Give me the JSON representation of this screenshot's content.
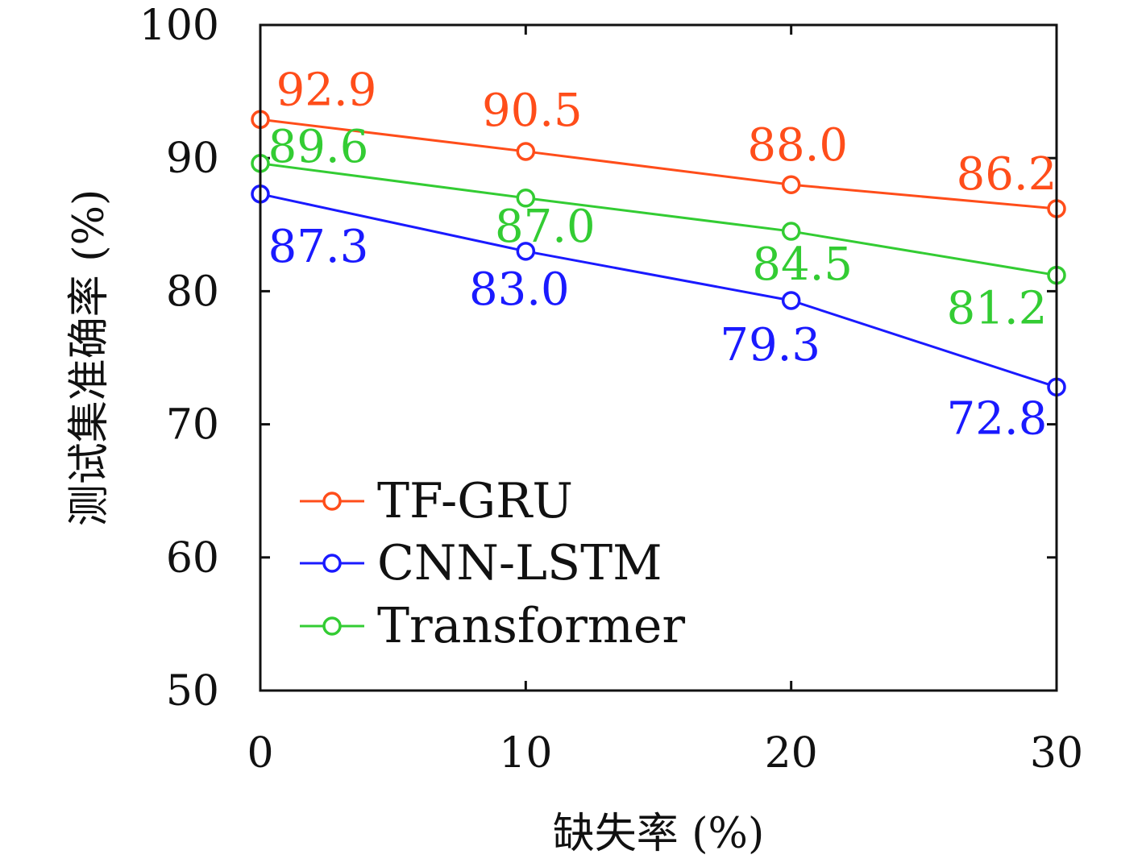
{
  "chart_data": {
    "type": "line",
    "xlabel": "缺失率 (%)",
    "ylabel": "测试集准确率 (%)",
    "x": [
      0,
      10,
      20,
      30
    ],
    "xlim": [
      0,
      30
    ],
    "ylim": [
      50,
      100
    ],
    "xticks": [
      "0",
      "10",
      "20",
      "30"
    ],
    "yticks": [
      "50",
      "60",
      "70",
      "80",
      "90",
      "100"
    ],
    "grid": false,
    "legend_position": "bottom-left",
    "series": [
      {
        "name": "TF-GRU",
        "color": "#ff4d1a",
        "values": [
          92.9,
          90.5,
          88.0,
          86.2
        ],
        "labels": [
          "92.9",
          "90.5",
          "88.0",
          "86.2"
        ]
      },
      {
        "name": "CNN-LSTM",
        "color": "#1a1aff",
        "values": [
          87.3,
          83.0,
          79.3,
          72.8
        ],
        "labels": [
          "87.3",
          "83.0",
          "79.3",
          "72.8"
        ]
      },
      {
        "name": "Transformer",
        "color": "#33cc33",
        "values": [
          89.6,
          87.0,
          84.5,
          81.2
        ],
        "labels": [
          "89.6",
          "87.0",
          "84.5",
          "81.2"
        ]
      }
    ]
  }
}
